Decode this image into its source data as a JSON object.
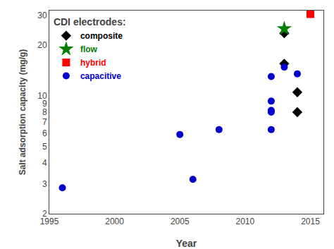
{
  "chart_data": {
    "type": "scatter",
    "xlabel": "Year",
    "ylabel": "Salt adsorption capacity (mg/g)",
    "xlim": [
      1995,
      2016
    ],
    "ylim": [
      2,
      32
    ],
    "xticks": [
      1995,
      2000,
      2005,
      2010,
      2015
    ],
    "yticks": [
      2,
      3,
      4,
      5,
      6,
      7,
      8,
      9,
      10,
      20,
      30
    ],
    "log": "y",
    "grid": false,
    "legend": "upper left",
    "legend_title": "CDI electrodes:",
    "series": [
      {
        "name": "composite",
        "color": "#000000",
        "marker": "diamond",
        "x": [
          2013,
          2013,
          2014,
          2014
        ],
        "values": [
          23.5,
          15.5,
          10.5,
          8.0
        ]
      },
      {
        "name": "flow",
        "color": "#008000",
        "marker": "star",
        "x": [
          2013
        ],
        "values": [
          25.0
        ]
      },
      {
        "name": "hybrid",
        "color": "#ff0000",
        "marker": "square",
        "x": [
          2015
        ],
        "values": [
          30.5
        ]
      },
      {
        "name": "capacitive",
        "color": "#0000cc",
        "marker": "circle",
        "x": [
          1996,
          2005,
          2006,
          2008,
          2012,
          2012,
          2012,
          2012,
          2012,
          2013,
          2014
        ],
        "values": [
          2.85,
          5.9,
          3.2,
          6.3,
          13.0,
          9.3,
          8.2,
          8.0,
          6.3,
          14.8,
          13.5
        ]
      }
    ]
  }
}
